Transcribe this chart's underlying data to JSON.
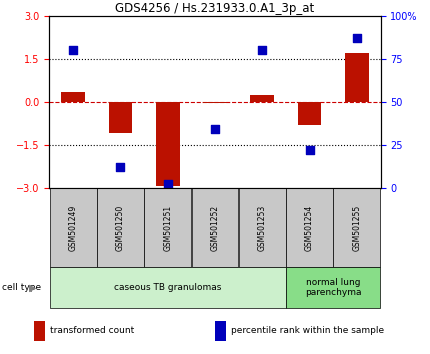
{
  "title": "GDS4256 / Hs.231933.0.A1_3p_at",
  "samples": [
    "GSM501249",
    "GSM501250",
    "GSM501251",
    "GSM501252",
    "GSM501253",
    "GSM501254",
    "GSM501255"
  ],
  "transformed_count": [
    0.35,
    -1.1,
    -2.95,
    -0.05,
    0.25,
    -0.8,
    1.7
  ],
  "percentile_rank": [
    80,
    12,
    2,
    34,
    80,
    22,
    87
  ],
  "bar_color": "#bb1100",
  "dot_color": "#0000bb",
  "ylim_left": [
    -3,
    3
  ],
  "ylim_right": [
    0,
    100
  ],
  "yticks_left": [
    -3,
    -1.5,
    0,
    1.5,
    3
  ],
  "yticks_right": [
    0,
    25,
    50,
    75,
    100
  ],
  "yticklabels_right": [
    "0",
    "25",
    "50",
    "75",
    "100%"
  ],
  "hlines_dotted": [
    1.5,
    -1.5
  ],
  "hline_zero_color": "#cc0000",
  "hline_dotted_color": "#000000",
  "cell_type_groups": [
    {
      "label": "caseous TB granulomas",
      "indices": [
        0,
        1,
        2,
        3,
        4
      ],
      "color": "#ccf0cc"
    },
    {
      "label": "normal lung\nparenchyma",
      "indices": [
        5,
        6
      ],
      "color": "#88dd88"
    }
  ],
  "cell_type_label": "cell type",
  "legend_items": [
    {
      "color": "#bb1100",
      "label": "transformed count"
    },
    {
      "color": "#0000bb",
      "label": "percentile rank within the sample"
    }
  ],
  "bar_width": 0.5,
  "dot_size": 40,
  "background_color": "#ffffff",
  "tick_label_area_color": "#c8c8c8"
}
